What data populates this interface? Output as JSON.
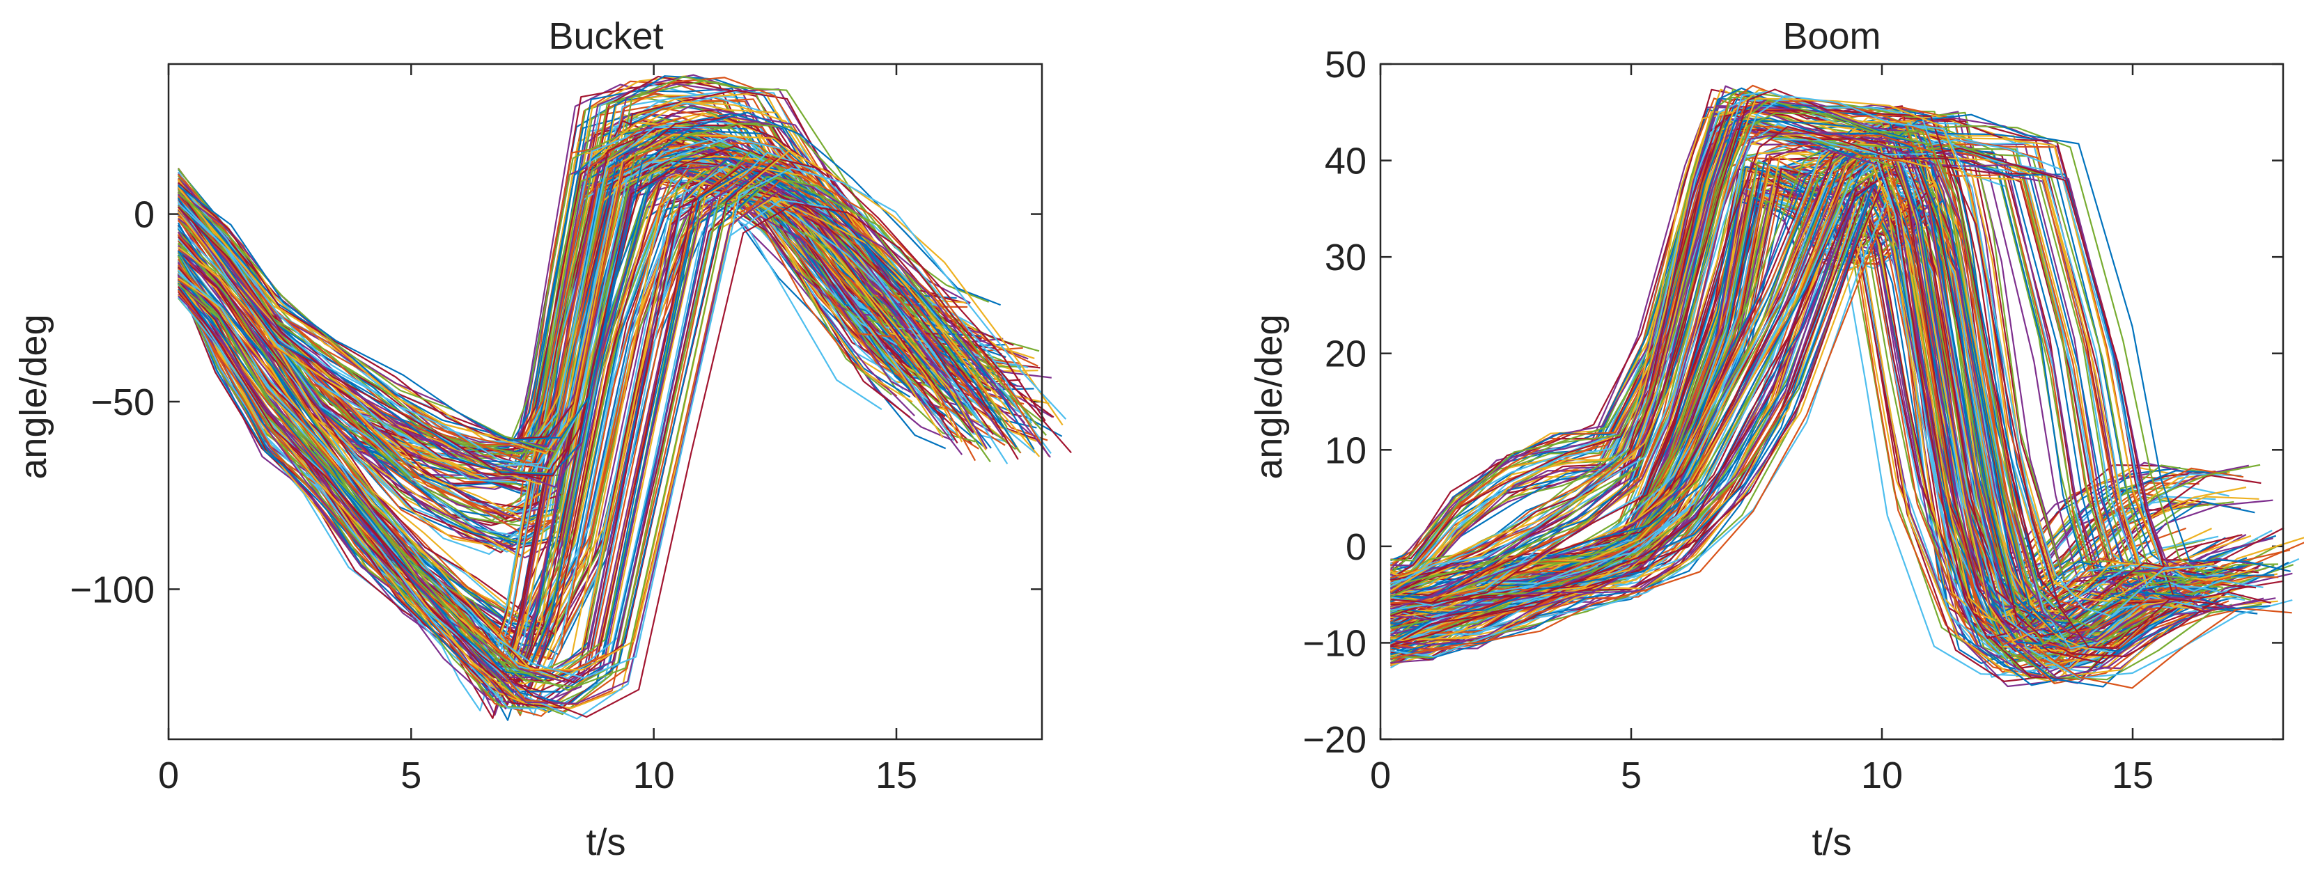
{
  "chart_data": [
    {
      "type": "line",
      "title": "Bucket",
      "xlabel": "t/s",
      "ylabel": "angle/deg",
      "xlim": [
        0,
        18
      ],
      "ylim": [
        -140,
        40
      ],
      "xticks": [
        0,
        5,
        10,
        15
      ],
      "yticks": [
        -100,
        -50,
        0
      ],
      "ytick_labels": [
        "−100",
        "−50",
        "0"
      ],
      "grid": false,
      "legend": "none",
      "series_count_visible": "hundreds of overlapping curves",
      "representative_series": [
        {
          "x": [
            0.2,
            1.5,
            2.5,
            3.5,
            5,
            6,
            7.0,
            7.6,
            8.0,
            9.0,
            10.0,
            11.0,
            12.0,
            13.0,
            14.0,
            15.0,
            16.0,
            16.9
          ],
          "y": [
            8,
            -15,
            -40,
            -55,
            -63,
            -66,
            -68,
            -68,
            -45,
            25,
            30,
            30,
            28,
            5,
            -15,
            -30,
            -40,
            -42
          ]
        },
        {
          "x": [
            0.2,
            1.0,
            2.0,
            3.0,
            4.0,
            5.0,
            6.0,
            7.0,
            7.8,
            8.5,
            9.0,
            10.0,
            11.0,
            12.0,
            13.0,
            14.0,
            15.0,
            16.0,
            16.7
          ],
          "y": [
            -2,
            -15,
            -30,
            -48,
            -60,
            -72,
            -80,
            -85,
            -80,
            -20,
            10,
            15,
            14,
            10,
            0,
            -15,
            -30,
            -38,
            -40
          ]
        },
        {
          "x": [
            0.2,
            1.0,
            2.0,
            3.0,
            4.0,
            5.0,
            6.0,
            7.0,
            7.5,
            8.5,
            9.5,
            10.5,
            11.5,
            12.5,
            13.5,
            14.5,
            15.5,
            16.5,
            17.2
          ],
          "y": [
            -10,
            -22,
            -40,
            -60,
            -78,
            -92,
            -103,
            -112,
            -115,
            -90,
            -30,
            5,
            10,
            5,
            -10,
            -25,
            -40,
            -52,
            -57
          ]
        },
        {
          "x": [
            0.2,
            1.0,
            2.0,
            3.0,
            4.0,
            5.0,
            6.0,
            6.5,
            7.0,
            7.5,
            8.5,
            9.5,
            10.0,
            11.0,
            12.0,
            13.0,
            14.0,
            15.0,
            16.0
          ],
          "y": [
            -15,
            -35,
            -58,
            -70,
            -88,
            -100,
            -110,
            -118,
            -128,
            -110,
            -40,
            8,
            18,
            16,
            10,
            0,
            -20,
            -38,
            -48
          ]
        },
        {
          "x": [
            0.2,
            1.2,
            2.2,
            3.2,
            4.5,
            5.5,
            6.5,
            7.5,
            8.0,
            9.0,
            10.0,
            11.0,
            12.0,
            13.0,
            14.0,
            15.0,
            15.8
          ],
          "y": [
            5,
            -10,
            -28,
            -38,
            -50,
            -58,
            -64,
            -66,
            -55,
            10,
            18,
            20,
            17,
            5,
            -12,
            -25,
            -28
          ]
        },
        {
          "x": [
            0.2,
            1.0,
            2.0,
            3.0,
            4.0,
            5.0,
            6.0,
            7.0,
            8.0,
            9.0,
            10.0,
            11.0,
            12.0,
            13.0,
            14.0,
            15.0,
            16.5,
            17.3
          ],
          "y": [
            -18,
            -30,
            -50,
            -65,
            -82,
            -98,
            -112,
            -125,
            -128,
            -120,
            -60,
            0,
            10,
            5,
            -5,
            -20,
            -45,
            -60
          ]
        }
      ]
    },
    {
      "type": "line",
      "title": "Boom",
      "xlabel": "t/s",
      "ylabel": "angle/deg",
      "xlim": [
        0,
        18
      ],
      "ylim": [
        -20,
        50
      ],
      "xticks": [
        0,
        5,
        10,
        15
      ],
      "yticks": [
        -20,
        -10,
        0,
        10,
        20,
        30,
        40,
        50
      ],
      "ytick_labels": [
        "−20",
        "−10",
        "0",
        "10",
        "20",
        "30",
        "40",
        "50"
      ],
      "grid": false,
      "legend": "none",
      "series_count_visible": "hundreds of overlapping curves",
      "representative_series": [
        {
          "x": [
            0.2,
            0.6,
            1.5,
            2.5,
            3.5,
            4.5,
            5.5,
            6.5,
            7.0,
            8.0,
            9.0,
            10.0,
            11.0,
            11.5,
            12.0,
            12.8,
            13.5,
            14.5,
            15.5,
            16.5
          ],
          "y": [
            -3,
            -3,
            3,
            7,
            9,
            10,
            20,
            38,
            45,
            44,
            43,
            43,
            43,
            30,
            10,
            -5,
            -3,
            3,
            6,
            6
          ]
        },
        {
          "x": [
            0.2,
            1.0,
            2.0,
            3.0,
            4.0,
            5.0,
            6.0,
            7.0,
            7.5,
            8.5,
            9.5,
            10.5,
            11.0,
            11.5,
            12.0,
            12.5,
            13.0,
            14.0,
            15.0,
            16.0,
            17.3
          ],
          "y": [
            -11,
            -9,
            -6,
            -4,
            -3,
            0,
            12,
            28,
            38,
            39,
            38,
            37,
            30,
            10,
            -5,
            -8,
            -11,
            -10,
            -6,
            -3,
            -0.5
          ]
        },
        {
          "x": [
            0.2,
            1.0,
            2.0,
            3.0,
            4.0,
            5.0,
            6.0,
            7.0,
            7.6,
            8.5,
            9.0,
            9.5,
            10.0,
            10.5,
            11.0,
            11.5,
            12.0,
            12.5,
            13.0,
            14.0,
            15.0,
            16.0
          ],
          "y": [
            -8,
            -7,
            -5,
            -4,
            -3,
            -1,
            8,
            22,
            38,
            36,
            31,
            31,
            33,
            36,
            30,
            15,
            0,
            -8,
            -10,
            -9,
            -6,
            -4
          ]
        },
        {
          "x": [
            0.2,
            1.0,
            2.0,
            3.0,
            4.0,
            5.0,
            6.0,
            7.0,
            8.0,
            9.0,
            9.5,
            10.0,
            10.5,
            11.0,
            12.0,
            13.0,
            14.0,
            15.0,
            16.0,
            17.0
          ],
          "y": [
            -10,
            -9,
            -8,
            -6,
            -4,
            -3,
            0,
            6,
            15,
            30,
            38,
            32,
            18,
            5,
            -8,
            -12,
            -12,
            -8,
            -5,
            -4.5
          ]
        },
        {
          "x": [
            0.2,
            1.0,
            2.0,
            3.0,
            4.0,
            5.0,
            6.0,
            7.0,
            8.0,
            9.0,
            10.0,
            11.0,
            12.0,
            13.0,
            14.0,
            14.5,
            15.0,
            15.5,
            16.0,
            16.8
          ],
          "y": [
            -6,
            -5,
            -4,
            -3,
            -2,
            0,
            5,
            15,
            25,
            38,
            42,
            42,
            41,
            40,
            20,
            5,
            -3,
            -4,
            -4,
            -4
          ]
        },
        {
          "x": [
            0.2,
            1.0,
            2.0,
            3.0,
            4.0,
            5.0,
            5.5,
            6.0,
            6.5,
            7.0,
            7.5,
            8.5,
            9.5,
            10.5,
            11.0,
            11.5,
            12.0,
            12.5,
            13.0,
            13.5,
            14.5,
            15.5
          ],
          "y": [
            -5,
            -4,
            -2,
            1,
            4,
            8,
            15,
            25,
            36,
            44,
            45,
            44,
            43,
            42,
            35,
            20,
            5,
            -5,
            -8,
            -8,
            -4,
            -4
          ]
        }
      ]
    }
  ]
}
